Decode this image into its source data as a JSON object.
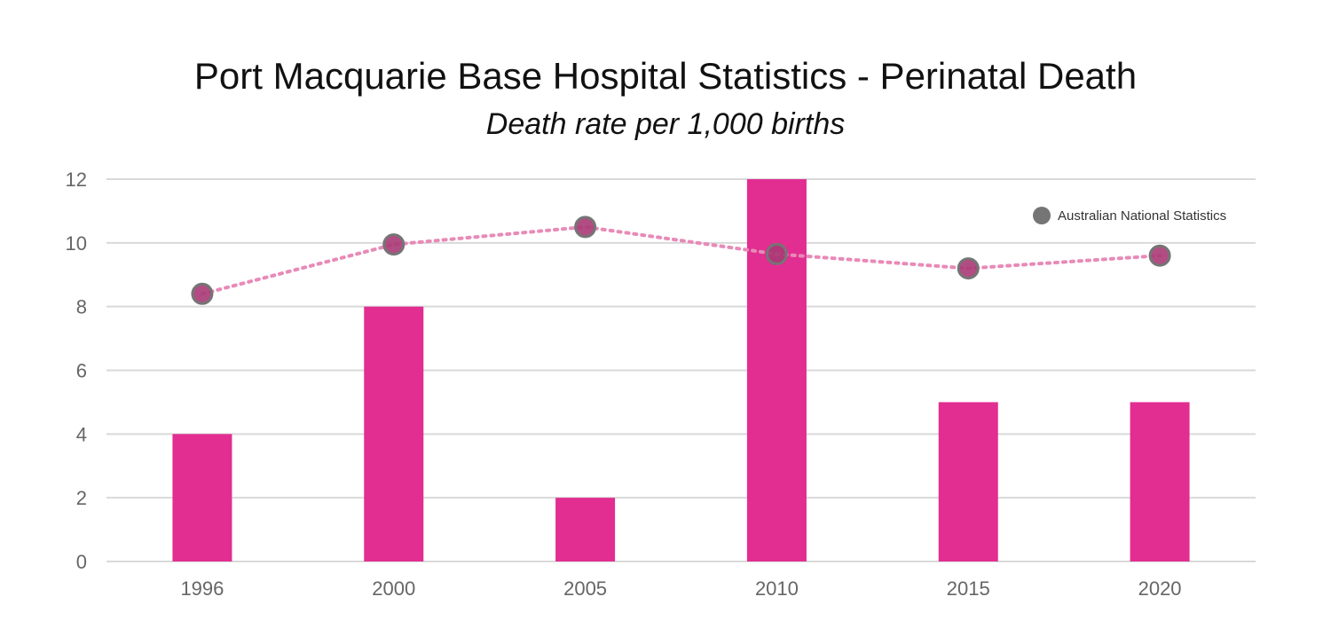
{
  "title": "Port Macquarie Base Hospital Statistics - Perinatal Death",
  "subtitle": "Death rate per 1,000 births",
  "colors": {
    "bar": "#e22d91",
    "line": "#e88ab8",
    "marker_fill": "#a83a76",
    "marker_stroke": "#757575",
    "grid": "#d9d9d9",
    "legend_marker": "#757575"
  },
  "chart_data": {
    "type": "bar",
    "categories": [
      "1996",
      "2000",
      "2005",
      "2010",
      "2015",
      "2020"
    ],
    "series": [
      {
        "values": [
          4,
          8,
          2,
          12,
          5,
          5
        ],
        "render": "bar"
      },
      {
        "name": "Australian National Statistics",
        "values": [
          8.4,
          9.95,
          10.5,
          9.65,
          9.2,
          9.6
        ],
        "render": "dotted-line-markers"
      }
    ],
    "ylim": [
      0,
      12
    ],
    "yticks": [
      "0",
      "2",
      "4",
      "6",
      "8",
      "10",
      "12"
    ],
    "grid": true,
    "legend_position": "top-right",
    "xlabel": "",
    "ylabel": ""
  }
}
